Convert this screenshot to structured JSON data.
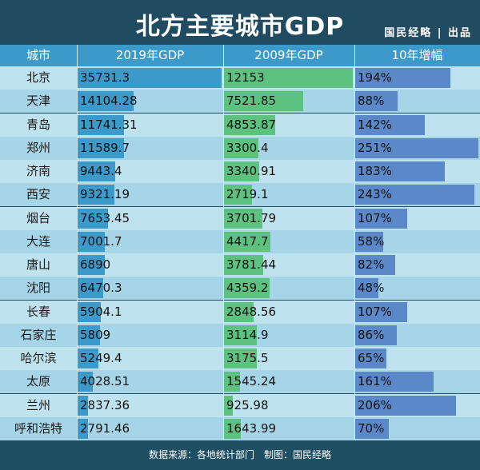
{
  "header": {
    "title": "北方主要城市GDP",
    "brand": "国民经略 | 出品"
  },
  "columns": [
    "城市",
    "2019年GDP",
    "2009年GDP",
    "10年增幅"
  ],
  "footer": "数据来源：各地统计部门　制图：国民经略",
  "colors": {
    "title_bg": "#204b61",
    "header_bg": "#3c9acb",
    "row_light": "#bfe2ef",
    "row_dark": "#a6d5e8",
    "bar_2019": "#3c9acb",
    "bar_2009": "#5dc27f",
    "bar_growth": "#5a88c8"
  },
  "chart_data": {
    "type": "table",
    "categories": [
      "北京",
      "天津",
      "青岛",
      "郑州",
      "济南",
      "西安",
      "烟台",
      "大连",
      "唐山",
      "沈阳",
      "长春",
      "石家庄",
      "哈尔滨",
      "太原",
      "兰州",
      "呼和浩特"
    ],
    "series": [
      {
        "name": "2019年GDP",
        "values": [
          35731.3,
          14104.28,
          11741.31,
          11589.7,
          9443.4,
          9321.19,
          7653.45,
          7001.7,
          6890,
          6470.3,
          5904.1,
          5809,
          5249.4,
          4028.51,
          2837.36,
          2791.46
        ],
        "labels": [
          "35731.3",
          "14104.28",
          "11741.31",
          "11589.7",
          "9443.4",
          "9321.19",
          "7653.45",
          "7001.7",
          "6890",
          "6470.3",
          "5904.1",
          "5809",
          "5249.4",
          "4028.51",
          "2837.36",
          "2791.46"
        ]
      },
      {
        "name": "2009年GDP",
        "values": [
          12153,
          7521.85,
          4853.87,
          3300.4,
          3340.91,
          2719.1,
          3701.79,
          4417.7,
          3781.44,
          4359.2,
          2848.56,
          3114.9,
          3175.5,
          1545.24,
          925.98,
          1643.99
        ],
        "labels": [
          "12153",
          "7521.85",
          "4853.87",
          "3300.4",
          "3340.91",
          "2719.1",
          "3701.79",
          "4417.7",
          "3781.44",
          "4359.2",
          "2848.56",
          "3114.9",
          "3175.5",
          "1545.24",
          "925.98",
          "1643.99"
        ]
      },
      {
        "name": "10年增幅",
        "values": [
          194,
          88,
          142,
          251,
          183,
          243,
          107,
          58,
          82,
          48,
          107,
          86,
          65,
          161,
          206,
          70
        ],
        "labels": [
          "194%",
          "88%",
          "142%",
          "251%",
          "183%",
          "243%",
          "107%",
          "58%",
          "82%",
          "48%",
          "107%",
          "86%",
          "65%",
          "161%",
          "206%",
          "70%"
        ]
      }
    ]
  }
}
